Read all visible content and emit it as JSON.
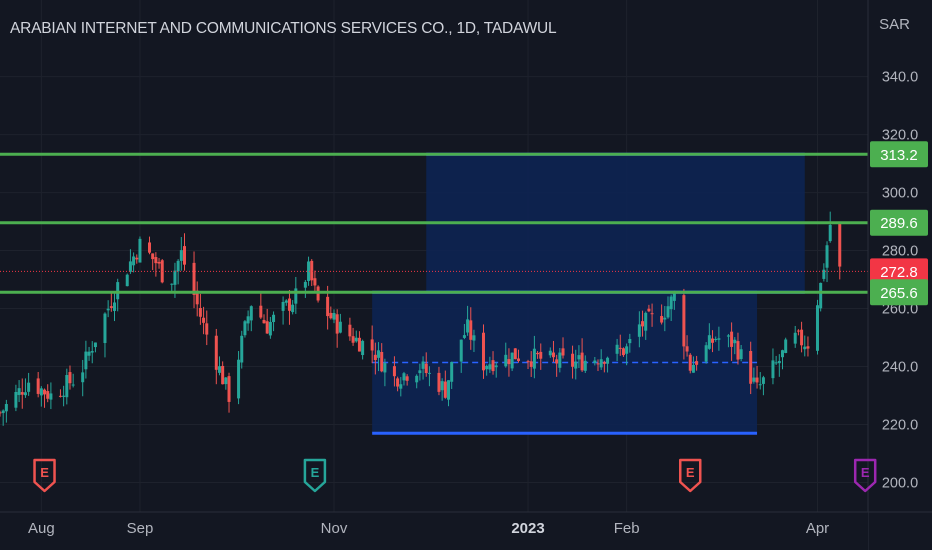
{
  "header": {
    "title": "ARABIAN INTERNET AND COMMUNICATIONS SERVICES CO., 1D, TADAWUL",
    "currency": "SAR"
  },
  "colors": {
    "background": "#131722",
    "up": "#26a69a",
    "down": "#ef5350",
    "level_line": "#4caf50",
    "zone_fill": "#0d2352",
    "zone_line": "#2962ff",
    "current_price": "#f23645",
    "grid": "#1e222d",
    "axis_text": "#b2b5be"
  },
  "chart_data": {
    "type": "candlestick",
    "title": "ARABIAN INTERNET AND COMMUNICATIONS SERVICES CO., 1D, TADAWUL",
    "y_unit": "SAR",
    "ylim": [
      195,
      354
    ],
    "y_ticks": [
      200,
      220,
      240,
      260,
      280,
      300,
      320,
      340
    ],
    "x_ticks": [
      {
        "label": "Aug",
        "date": "2022-08-01",
        "bold": false
      },
      {
        "label": "Sep",
        "date": "2022-09-01",
        "bold": false
      },
      {
        "label": "Nov",
        "date": "2022-11-01",
        "bold": false
      },
      {
        "label": "2023",
        "date": "2023-01-01",
        "bold": true
      },
      {
        "label": "Feb",
        "date": "2023-02-01",
        "bold": false
      },
      {
        "label": "Apr",
        "date": "2023-04-02",
        "bold": false
      }
    ],
    "x_range": [
      "2022-07-19",
      "2023-05-08"
    ],
    "price_labels": [
      {
        "label": "313.2",
        "value": 313.2,
        "kind": "level"
      },
      {
        "label": "289.6",
        "value": 289.6,
        "kind": "level"
      },
      {
        "label": "272.8",
        "value": 272.8,
        "kind": "current"
      },
      {
        "label": "265.6",
        "value": 265.6,
        "kind": "level"
      }
    ],
    "horizontal_levels": [
      313.2,
      289.6,
      265.6
    ],
    "current_price": 272.8,
    "zones": [
      {
        "name": "upper",
        "start": "2022-11-30",
        "end": "2023-03-29",
        "top": 313.2,
        "bottom": 265.6,
        "mid": 289.6
      },
      {
        "name": "lower",
        "start": "2022-11-13",
        "end": "2023-03-14",
        "top": 265.6,
        "bottom": 217.0,
        "mid": 241.4
      }
    ],
    "earnings_markers": [
      {
        "label": "E",
        "date": "2022-08-02",
        "color": "#ef5350"
      },
      {
        "label": "E",
        "date": "2022-10-26",
        "color": "#26a69a"
      },
      {
        "label": "E",
        "date": "2023-02-21",
        "color": "#ef5350"
      },
      {
        "label": "E",
        "date": "2023-04-17",
        "color": "#9c27b0"
      }
    ],
    "price_path": [
      {
        "date": "2022-07-19",
        "close": 224
      },
      {
        "date": "2022-07-28",
        "close": 235
      },
      {
        "date": "2022-08-04",
        "close": 230
      },
      {
        "date": "2022-08-13",
        "close": 237
      },
      {
        "date": "2022-08-25",
        "close": 268
      },
      {
        "date": "2022-09-01",
        "close": 282
      },
      {
        "date": "2022-09-06",
        "close": 276
      },
      {
        "date": "2022-09-10",
        "close": 268
      },
      {
        "date": "2022-09-14",
        "close": 279
      },
      {
        "date": "2022-09-21",
        "close": 254
      },
      {
        "date": "2022-09-29",
        "close": 230
      },
      {
        "date": "2022-10-06",
        "close": 262
      },
      {
        "date": "2022-10-11",
        "close": 254
      },
      {
        "date": "2022-10-20",
        "close": 264
      },
      {
        "date": "2022-10-24",
        "close": 273
      },
      {
        "date": "2022-10-27",
        "close": 262
      },
      {
        "date": "2022-11-04",
        "close": 252
      },
      {
        "date": "2022-11-13",
        "close": 246
      },
      {
        "date": "2022-11-20",
        "close": 236
      },
      {
        "date": "2022-11-28",
        "close": 240
      },
      {
        "date": "2022-12-06",
        "close": 232
      },
      {
        "date": "2022-12-10",
        "close": 248
      },
      {
        "date": "2022-12-13",
        "close": 253
      },
      {
        "date": "2022-12-18",
        "close": 241
      },
      {
        "date": "2022-12-28",
        "close": 244
      },
      {
        "date": "2023-01-15",
        "close": 241
      },
      {
        "date": "2023-02-01",
        "close": 246
      },
      {
        "date": "2023-02-05",
        "close": 254
      },
      {
        "date": "2023-02-12",
        "close": 258
      },
      {
        "date": "2023-02-16",
        "close": 264
      },
      {
        "date": "2023-02-21",
        "close": 240
      },
      {
        "date": "2023-03-01",
        "close": 250
      },
      {
        "date": "2023-03-07",
        "close": 248
      },
      {
        "date": "2023-03-14",
        "close": 232
      },
      {
        "date": "2023-03-21",
        "close": 242
      },
      {
        "date": "2023-03-25",
        "close": 250
      },
      {
        "date": "2023-03-30",
        "close": 248
      },
      {
        "date": "2023-04-03",
        "close": 268
      },
      {
        "date": "2023-04-06",
        "close": 289
      },
      {
        "date": "2023-04-09",
        "close": 273
      }
    ]
  }
}
